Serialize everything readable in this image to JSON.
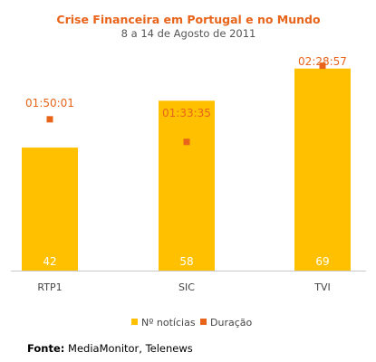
{
  "chart_data": {
    "type": "bar",
    "title": "Crise Financeira em Portugal e no Mundo",
    "subtitle": "8 a 14 de Agosto de 2011",
    "categories": [
      "RTP1",
      "SIC",
      "TVI"
    ],
    "series": [
      {
        "name": "Nº notícias",
        "values": [
          42,
          58,
          69
        ],
        "color": "#FFC000"
      },
      {
        "name": "Duração",
        "values": [
          "01:50:01",
          "01:33:35",
          "02:28:57"
        ],
        "seconds": [
          6601,
          5615,
          8937
        ],
        "color": "#E8641B"
      }
    ],
    "ylim_noticias": [
      0,
      72
    ],
    "ylim_duracao_seconds": [
      0,
      9200
    ],
    "legend_position": "bottom",
    "grid": false
  },
  "colors": {
    "title": "#E8641B",
    "subtitle": "#555555",
    "axis_label": "#444444",
    "bar_label": "#ffffff",
    "baseline": "#c8c8c8"
  },
  "source": {
    "label": "Fonte:",
    "text": "MediaMonitor, Telenews"
  }
}
